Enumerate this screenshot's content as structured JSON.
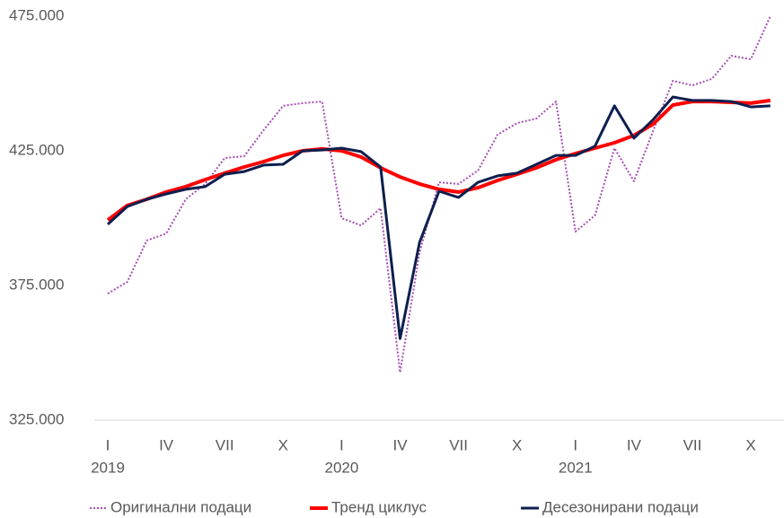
{
  "chart_data": {
    "type": "line",
    "categories": [
      "I",
      null,
      null,
      "IV",
      null,
      null,
      "VII",
      null,
      null,
      "X",
      null,
      null,
      "I",
      null,
      null,
      "IV",
      null,
      null,
      "VII",
      null,
      null,
      "X",
      null,
      null,
      "I",
      null,
      null,
      "IV",
      null,
      null,
      "VII",
      null,
      null,
      "X",
      null
    ],
    "category_groups": [
      "2019",
      "2020",
      "2021"
    ],
    "series": [
      {
        "name": "Оригинални подаци",
        "color": "#a64db3",
        "style": "dotted",
        "width": 2,
        "values": [
          372000,
          376300,
          391700,
          394300,
          407000,
          412700,
          422300,
          423000,
          432700,
          441700,
          442700,
          443300,
          400000,
          397300,
          403700,
          342700,
          387300,
          413300,
          412700,
          417700,
          431000,
          435300,
          437000,
          443300,
          395000,
          401000,
          426000,
          413700,
          432700,
          451000,
          449300,
          451700,
          460300,
          459000,
          475000
        ]
      },
      {
        "name": "Тренд циклус",
        "color": "#ff0000",
        "style": "solid",
        "width": 4,
        "values": [
          399300,
          404700,
          407000,
          409700,
          411700,
          414300,
          416700,
          419000,
          421000,
          423300,
          425000,
          425700,
          425000,
          422700,
          418700,
          415300,
          412700,
          410700,
          409700,
          411300,
          414000,
          416300,
          418700,
          421700,
          424000,
          426000,
          428000,
          430700,
          435000,
          442000,
          443300,
          443300,
          443000,
          442700,
          443700
        ]
      },
      {
        "name": "Десезонирани подаци",
        "color": "#0d1f4f",
        "style": "solid",
        "width": 3,
        "values": [
          397700,
          404300,
          407000,
          409000,
          410700,
          411700,
          416300,
          417300,
          419700,
          420000,
          425000,
          425300,
          426000,
          424700,
          419000,
          355300,
          391000,
          410000,
          407700,
          413300,
          415700,
          416700,
          420000,
          423300,
          423300,
          426700,
          441700,
          429700,
          436700,
          445000,
          443700,
          443700,
          443300,
          441300,
          441700
        ]
      }
    ],
    "ylim": [
      325000,
      475000
    ],
    "yticks": [
      {
        "value": 325000,
        "label": "325.000"
      },
      {
        "value": 375000,
        "label": "375.000"
      },
      {
        "value": 425000,
        "label": "425.000"
      },
      {
        "value": 475000,
        "label": "475.000"
      }
    ],
    "grid": false,
    "legend": "bottom"
  }
}
